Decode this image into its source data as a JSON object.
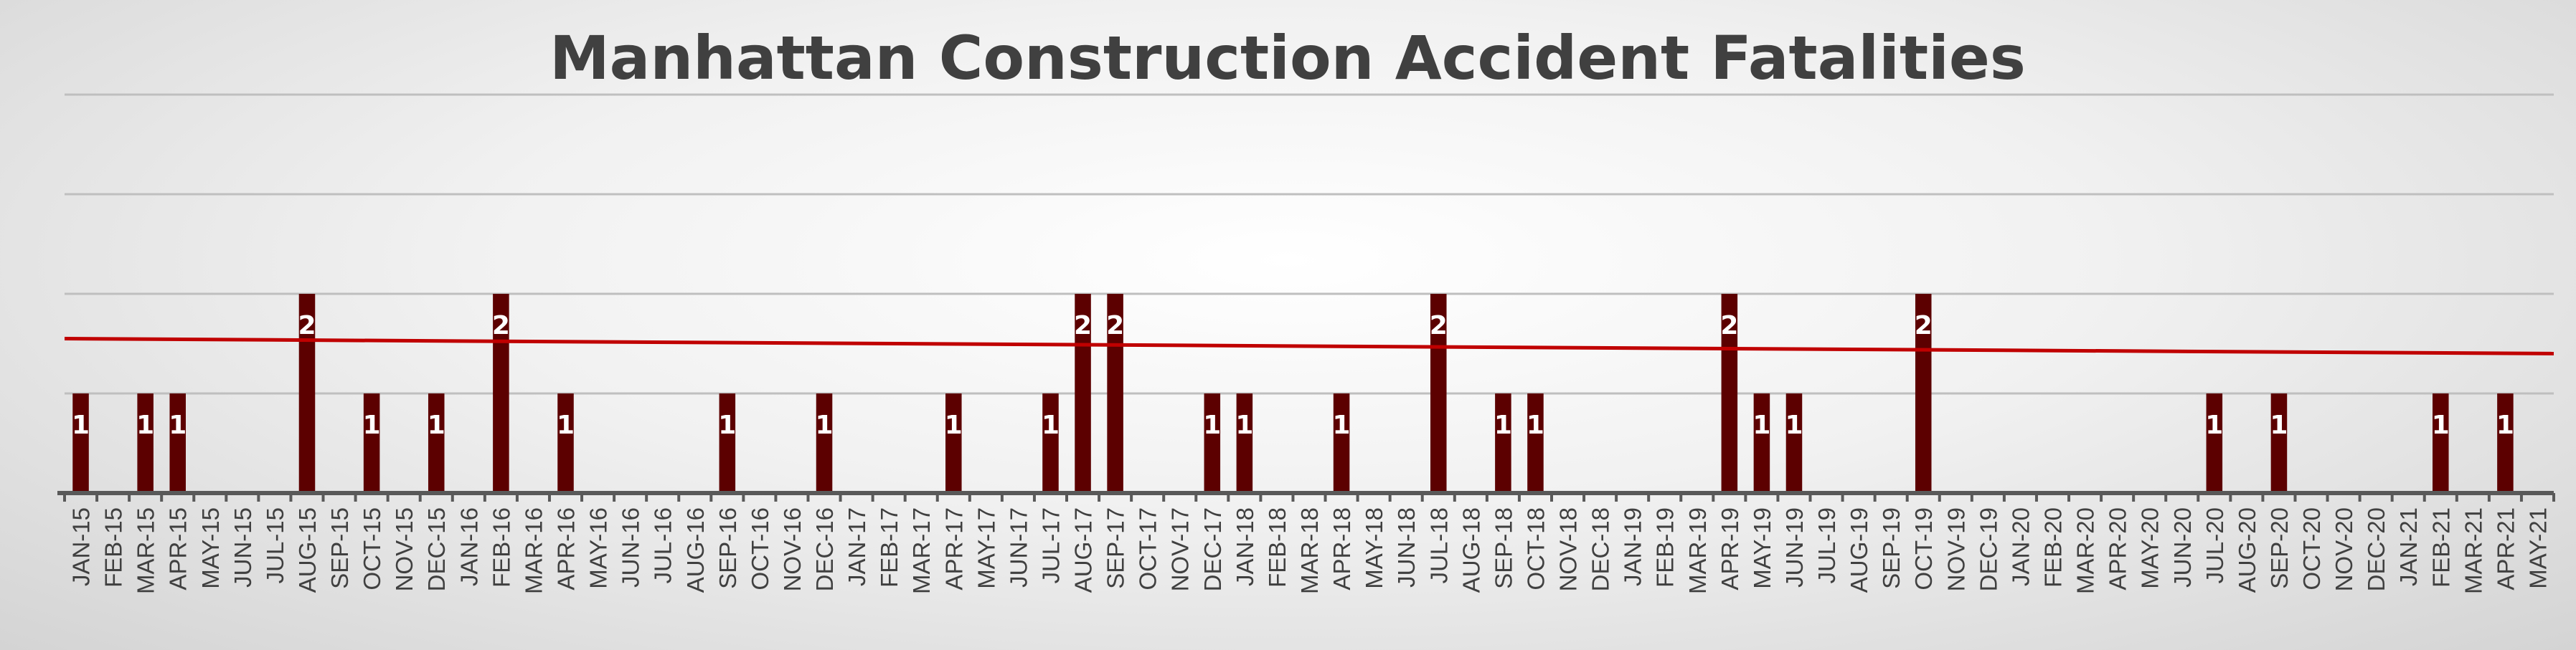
{
  "chart_data": {
    "type": "bar",
    "title": "Manhattan Construction Accident Fatalities",
    "xlabel": "",
    "ylabel": "",
    "ylim": [
      0,
      4
    ],
    "grid": true,
    "legend": "none",
    "trendline": {
      "type": "linear",
      "start": 1.55,
      "end": 1.4
    },
    "colors": {
      "bar": "#5c0000",
      "trend": "#c00000",
      "grid": "#bfbfbf",
      "axis": "#595959"
    },
    "categories": [
      "JAN-15",
      "FEB-15",
      "MAR-15",
      "APR-15",
      "MAY-15",
      "JUN-15",
      "JUL-15",
      "AUG-15",
      "SEP-15",
      "OCT-15",
      "NOV-15",
      "DEC-15",
      "JAN-16",
      "FEB-16",
      "MAR-16",
      "APR-16",
      "MAY-16",
      "JUN-16",
      "JUL-16",
      "AUG-16",
      "SEP-16",
      "OCT-16",
      "NOV-16",
      "DEC-16",
      "JAN-17",
      "FEB-17",
      "MAR-17",
      "APR-17",
      "MAY-17",
      "JUN-17",
      "JUL-17",
      "AUG-17",
      "SEP-17",
      "OCT-17",
      "NOV-17",
      "DEC-17",
      "JAN-18",
      "FEB-18",
      "MAR-18",
      "APR-18",
      "MAY-18",
      "JUN-18",
      "JUL-18",
      "AUG-18",
      "SEP-18",
      "OCT-18",
      "NOV-18",
      "DEC-18",
      "JAN-19",
      "FEB-19",
      "MAR-19",
      "APR-19",
      "MAY-19",
      "JUN-19",
      "JUL-19",
      "AUG-19",
      "SEP-19",
      "OCT-19",
      "NOV-19",
      "DEC-19",
      "JAN-20",
      "FEB-20",
      "MAR-20",
      "APR-20",
      "MAY-20",
      "JUN-20",
      "JUL-20",
      "AUG-20",
      "SEP-20",
      "OCT-20",
      "NOV-20",
      "DEC-20",
      "JAN-21",
      "FEB-21",
      "MAR-21",
      "APR-21",
      "MAY-21"
    ],
    "categories_labeled": [
      "JAN-15",
      "FEB-15",
      "MAR-15",
      "APR-15",
      "MAY-15",
      "JUN-15",
      "JUL-15",
      "AUG-15",
      "SEP-15",
      "OCT-15",
      "NOV-15",
      "DEC-15",
      "JAN-16",
      "FEB-16",
      "MAR-16",
      "APR-16",
      "MAY-16",
      "JUN-16",
      "JUL-16",
      "AUG-16",
      "SEP-16",
      "OCT-16",
      "NOV-16",
      "DEC-16",
      "JAN-17",
      "FEB-17",
      "MAR-17",
      "APR-17",
      "MAY-17",
      "JUN-17",
      "JUL-17",
      "AUG-17",
      "SEP-17",
      "OCT-17",
      "NOV-17",
      "DEC-17",
      "JAN-18",
      "FEB-18",
      "MAR-18",
      "APR-18",
      "MAY-18",
      "JUN-18",
      "JUL-18",
      "AUG-18",
      "SEP-18",
      "OCT-18",
      "NOV-18",
      "DEC-18",
      "JAN-19",
      "FEB-19",
      "MAR-19",
      "APR-19",
      "MAY-19",
      "JUN-19",
      "JUL-19",
      "AUG-19",
      "SEP-19",
      "OCT-19",
      "NOV-19",
      "DEC-19",
      "JAN-20",
      "FEB-20",
      "MAR-20",
      "APR-20",
      "MAY-20",
      "JUN-20",
      "JUL-20",
      "AUG-20",
      "SEP-20",
      "OCT-20",
      "NOV-20",
      "DEC-20",
      "JAN-21",
      "FEB-21",
      "MAR-21",
      "APR-21",
      "MAY-21"
    ],
    "values": [
      1,
      0,
      1,
      1,
      0,
      0,
      0,
      2,
      0,
      1,
      0,
      1,
      0,
      2,
      0,
      1,
      0,
      0,
      0,
      0,
      1,
      0,
      0,
      1,
      0,
      0,
      0,
      1,
      0,
      0,
      1,
      2,
      2,
      0,
      0,
      1,
      1,
      0,
      0,
      1,
      0,
      0,
      2,
      0,
      1,
      1,
      0,
      0,
      0,
      0,
      0,
      2,
      1,
      1,
      0,
      0,
      0,
      2,
      0,
      0,
      0,
      0,
      0,
      0,
      0,
      0,
      1,
      0,
      1,
      0,
      0,
      0,
      0,
      1,
      0,
      1,
      0
    ]
  }
}
